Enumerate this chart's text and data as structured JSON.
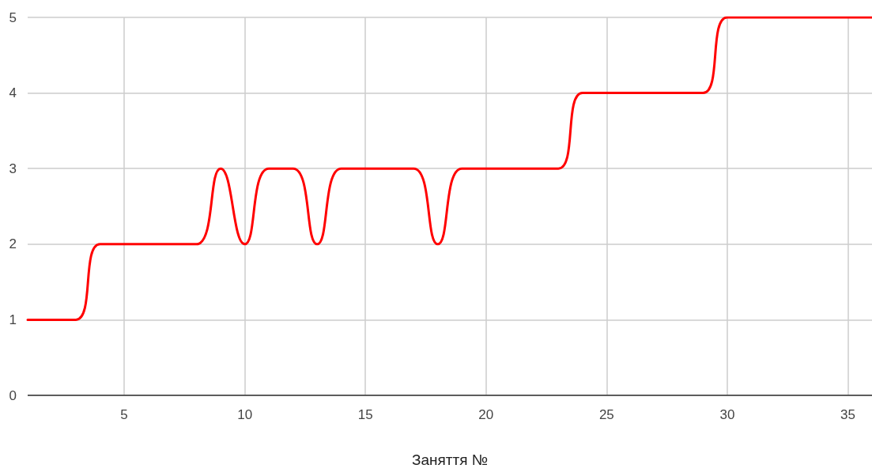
{
  "chart_data": {
    "type": "line",
    "xlabel": "Заняття №",
    "x": [
      1,
      2,
      3,
      4,
      5,
      6,
      7,
      8,
      9,
      10,
      11,
      12,
      13,
      14,
      15,
      16,
      17,
      18,
      19,
      20,
      21,
      22,
      23,
      24,
      25,
      26,
      27,
      28,
      29,
      30,
      31,
      32,
      33,
      34,
      35,
      36
    ],
    "series": [
      {
        "color": "#ff0000",
        "values": [
          1,
          1,
          1,
          2,
          2,
          2,
          2,
          2,
          3,
          2,
          3,
          3,
          2,
          3,
          3,
          3,
          3,
          2,
          3,
          3,
          3,
          3,
          3,
          4,
          4,
          4,
          4,
          4,
          4,
          5,
          5,
          5,
          5,
          5,
          5,
          5
        ]
      }
    ],
    "xlim": [
      1,
      36
    ],
    "xticks": [
      5,
      10,
      15,
      20,
      25,
      30,
      35
    ],
    "ylim": [
      0,
      5
    ],
    "yticks": [
      0,
      1,
      2,
      3,
      4,
      5
    ],
    "grid": true,
    "marker": "none",
    "line_style": "solid"
  }
}
